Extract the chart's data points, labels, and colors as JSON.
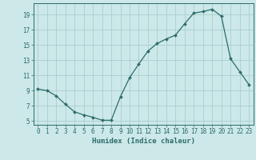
{
  "x": [
    0,
    1,
    2,
    3,
    4,
    5,
    6,
    7,
    8,
    9,
    10,
    11,
    12,
    13,
    14,
    15,
    16,
    17,
    18,
    19,
    20,
    21,
    22,
    23
  ],
  "y": [
    9.2,
    9.0,
    8.3,
    7.2,
    6.2,
    5.8,
    5.5,
    5.1,
    5.1,
    8.2,
    10.7,
    12.5,
    14.2,
    15.2,
    15.8,
    16.3,
    17.8,
    19.2,
    19.4,
    19.7,
    18.8,
    13.2,
    11.5,
    9.8
  ],
  "line_color": "#2d6b6b",
  "marker": "D",
  "marker_size": 2.0,
  "bg_color": "#cce8e8",
  "grid_color": "#aacece",
  "axis_color": "#2d6b6b",
  "xlabel": "Humidex (Indice chaleur)",
  "xlim": [
    -0.5,
    23.5
  ],
  "ylim": [
    4.5,
    20.5
  ],
  "yticks": [
    5,
    7,
    9,
    11,
    13,
    15,
    17,
    19
  ],
  "xticks": [
    0,
    1,
    2,
    3,
    4,
    5,
    6,
    7,
    8,
    9,
    10,
    11,
    12,
    13,
    14,
    15,
    16,
    17,
    18,
    19,
    20,
    21,
    22,
    23
  ],
  "tick_fontsize": 5.5,
  "label_fontsize": 6.5
}
